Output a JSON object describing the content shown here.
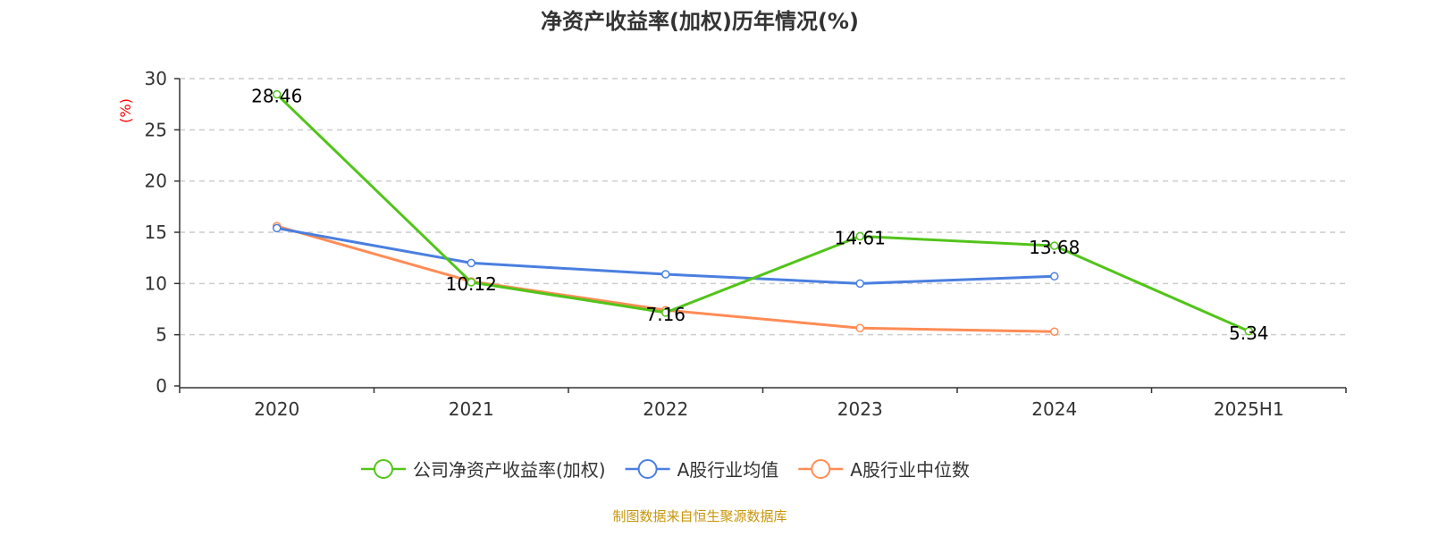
{
  "chart_data": {
    "type": "line",
    "title": "净资产收益率(加权)历年情况(%)",
    "ylabel": "(%)",
    "xlabel": "",
    "categories": [
      "2020",
      "2021",
      "2022",
      "2023",
      "2024",
      "2025H1"
    ],
    "ylim": [
      0,
      30
    ],
    "yticks": [
      0,
      5,
      10,
      15,
      20,
      25,
      30
    ],
    "grid": true,
    "legend_position": "bottom",
    "series": [
      {
        "name": "公司净资产收益率(加权)",
        "color": "#52c41a",
        "values": [
          28.46,
          10.12,
          7.16,
          14.61,
          13.68,
          5.34
        ],
        "labels": [
          "28.46",
          "10.12",
          "7.16",
          "14.61",
          "13.68",
          "5.34"
        ]
      },
      {
        "name": "A股行业均值",
        "color": "#4a7fe0",
        "values": [
          15.4,
          12.0,
          10.9,
          10.0,
          10.7,
          null
        ]
      },
      {
        "name": "A股行业中位数",
        "color": "#ff8c55",
        "values": [
          15.6,
          10.2,
          7.4,
          5.65,
          5.3,
          null
        ]
      }
    ],
    "source": "制图数据来自恒生聚源数据库"
  }
}
